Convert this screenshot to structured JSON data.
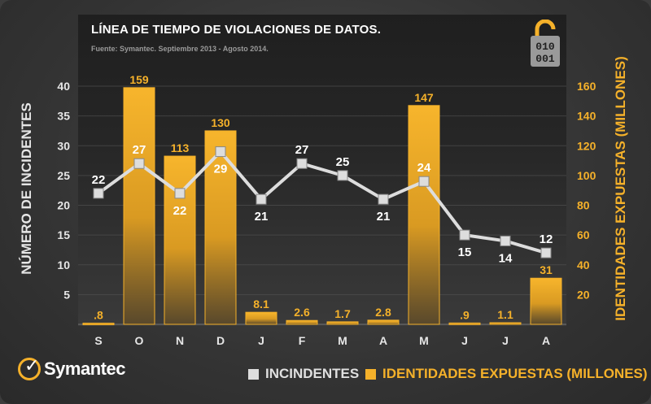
{
  "chart_data": {
    "type": "bar+line",
    "title": "LÍNEA DE TIEMPO DE VIOLACIONES DE DATOS.",
    "subtitle": "Fuente: Symantec. Septiembre 2013 - Agosto 2014.",
    "categories": [
      "S",
      "O",
      "N",
      "D",
      "J",
      "F",
      "M",
      "A",
      "M",
      "J",
      "J",
      "A"
    ],
    "series": [
      {
        "name": "INCINDENTES",
        "type": "line",
        "axis": "left",
        "values": [
          22,
          27,
          22,
          29,
          21,
          27,
          25,
          21,
          24,
          15,
          14,
          12
        ],
        "color": "#dddddd"
      },
      {
        "name": "IDENTIDADES EXPUESTAS (MILLONES)",
        "type": "bar",
        "axis": "right",
        "values": [
          0.8,
          159,
          113,
          130,
          8.1,
          2.6,
          1.7,
          2.8,
          147,
          0.9,
          1.1,
          31
        ],
        "labels": [
          ".8",
          "159",
          "113",
          "130",
          "8.1",
          "2.6",
          "1.7",
          "2.8",
          "147",
          ".9",
          "1.1",
          "31"
        ],
        "color": "#f5b12a"
      }
    ],
    "ylabel_left": "NÚMERO DE INCIDENTES",
    "ylabel_right": "IDENTIDADES EXPUESTAS (MILLONES)",
    "ylim_left": [
      0,
      40
    ],
    "yticks_left": [
      5,
      10,
      15,
      20,
      25,
      30,
      35,
      40
    ],
    "ylim_right": [
      0,
      160
    ],
    "yticks_right": [
      20,
      40,
      60,
      80,
      100,
      120,
      140,
      160
    ],
    "grid": true,
    "legend_position": "bottom"
  },
  "brand": {
    "name": "Symantec",
    "accent": "#f5b12a",
    "lock_icon_digits": [
      "010",
      "001"
    ]
  }
}
